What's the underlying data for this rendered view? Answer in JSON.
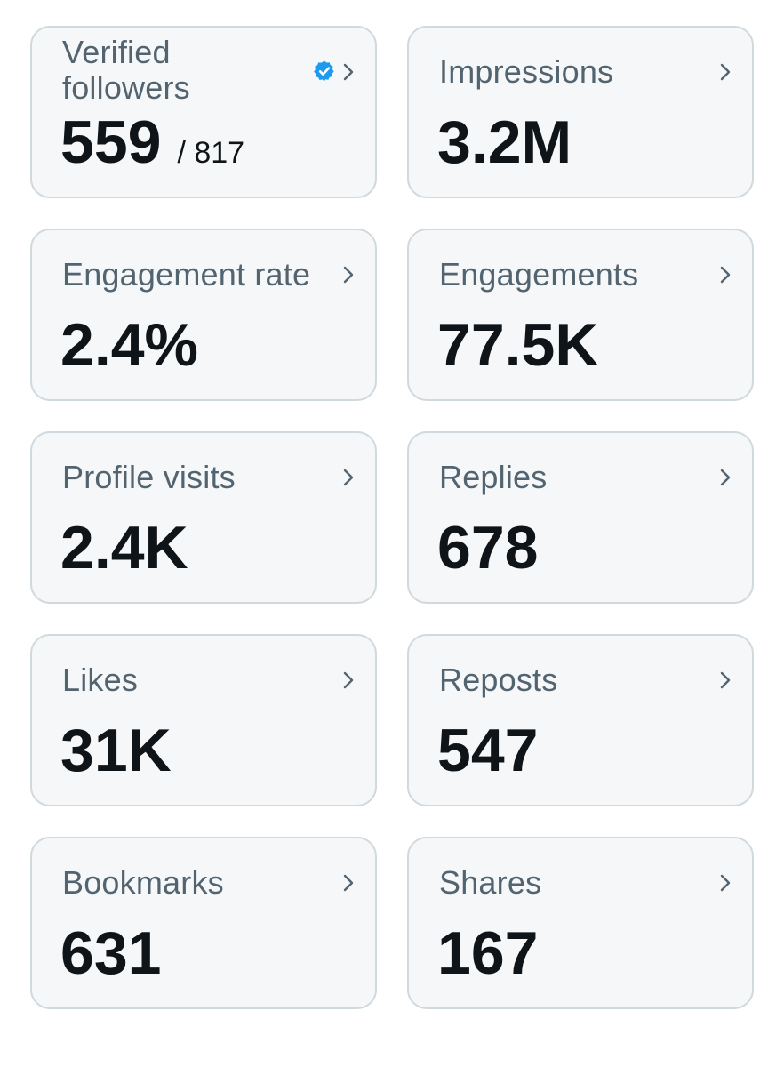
{
  "metrics": [
    {
      "label": "Verified followers",
      "value": "559",
      "suffix": "/ 817",
      "badge": "verified-badge-icon"
    },
    {
      "label": "Impressions",
      "value": "3.2M"
    },
    {
      "label": "Engagement rate",
      "value": "2.4%"
    },
    {
      "label": "Engagements",
      "value": "77.5K"
    },
    {
      "label": "Profile visits",
      "value": "2.4K"
    },
    {
      "label": "Replies",
      "value": "678"
    },
    {
      "label": "Likes",
      "value": "31K"
    },
    {
      "label": "Reposts",
      "value": "547"
    },
    {
      "label": "Bookmarks",
      "value": "631"
    },
    {
      "label": "Shares",
      "value": "167"
    }
  ],
  "icons": {
    "chevron": "chevron-right-icon",
    "badge": "verified-badge-icon"
  },
  "colors": {
    "card_background": "#f5f7f8",
    "card_border": "#cfd9de",
    "label": "#536471",
    "value": "#0f1419",
    "badge": "#1d9bf0"
  }
}
